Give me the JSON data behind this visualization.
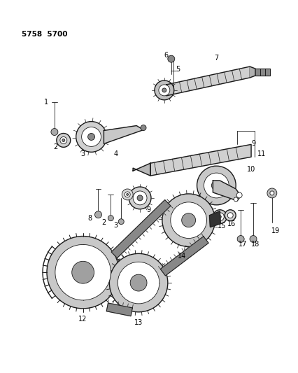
{
  "title": "5758  5700",
  "background_color": "#ffffff",
  "line_color": "#1a1a1a",
  "label_color": "#000000",
  "figsize": [
    4.27,
    5.33
  ],
  "dpi": 100
}
